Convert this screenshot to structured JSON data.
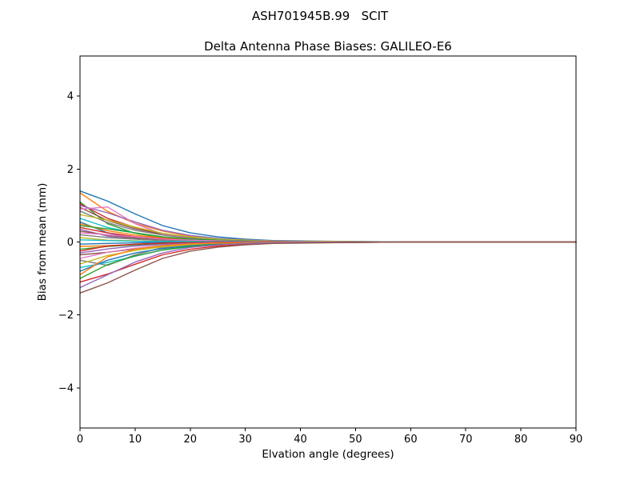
{
  "figure": {
    "suptitle": "ASH701945B.99   SCIT",
    "background": "#ffffff"
  },
  "chart_data": {
    "type": "line",
    "title": "Delta Antenna Phase Biases: GALILEO-E6",
    "suptitle": "ASH701945B.99   SCIT",
    "xlabel": "Elvation angle (degrees)",
    "ylabel": "Bias from mean (mm)",
    "xlim": [
      0,
      90
    ],
    "ylim": [
      -5.1,
      5.1
    ],
    "xticks": [
      0,
      10,
      20,
      30,
      40,
      50,
      60,
      70,
      80,
      90
    ],
    "xtick_labels": [
      "0",
      "10",
      "20",
      "30",
      "40",
      "50",
      "60",
      "70",
      "80",
      "90"
    ],
    "yticks": [
      -4,
      -2,
      0,
      2,
      4
    ],
    "ytick_labels": [
      "−4",
      "−2",
      "0",
      "2",
      "4"
    ],
    "grid": false,
    "legend": "none",
    "axis_color": "#000000",
    "palette": [
      "#1f77b4",
      "#ff7f0e",
      "#2ca02c",
      "#d62728",
      "#9467bd",
      "#8c564b",
      "#e377c2",
      "#7f7f7f",
      "#bcbd22",
      "#17becf"
    ],
    "x": [
      0,
      5,
      10,
      15,
      20,
      25,
      30,
      35,
      40,
      50,
      60,
      70,
      80,
      90
    ],
    "series": [
      {
        "values": [
          1.4,
          1.12,
          0.77,
          0.45,
          0.25,
          0.14,
          0.08,
          0.04,
          0.03,
          0.01,
          0,
          0,
          0,
          0
        ]
      },
      {
        "values": [
          1.35,
          0.84,
          0.51,
          0.3,
          0.16,
          0.09,
          0.05,
          0.03,
          0.01,
          0,
          0,
          0,
          0,
          0
        ]
      },
      {
        "values": [
          1.1,
          0.5,
          0.24,
          0.12,
          0.07,
          0.03,
          0.02,
          0.01,
          0,
          0,
          0,
          0,
          0,
          0
        ]
      },
      {
        "values": [
          1.05,
          0.65,
          0.4,
          0.23,
          0.13,
          0.07,
          0.04,
          0.02,
          0.01,
          0,
          0,
          0,
          0,
          0
        ]
      },
      {
        "values": [
          1.0,
          0.8,
          0.55,
          0.32,
          0.18,
          0.1,
          0.06,
          0.03,
          0.02,
          0.01,
          0,
          0,
          0,
          0
        ]
      },
      {
        "values": [
          0.95,
          0.59,
          0.36,
          0.21,
          0.11,
          0.07,
          0.04,
          0.02,
          0.01,
          0,
          0,
          0,
          0,
          0
        ]
      },
      {
        "values": [
          0.9,
          0.96,
          0.5,
          0.22,
          0.1,
          0.05,
          0.02,
          0.01,
          0,
          0,
          0,
          0,
          0,
          0
        ]
      },
      {
        "values": [
          0.85,
          0.53,
          0.32,
          0.19,
          0.1,
          0.06,
          0.03,
          0.02,
          0.01,
          0,
          0,
          0,
          0,
          0
        ]
      },
      {
        "values": [
          0.75,
          0.6,
          0.41,
          0.24,
          0.14,
          0.08,
          0.05,
          0.02,
          0.02,
          0.01,
          0,
          0,
          0,
          0
        ]
      },
      {
        "values": [
          0.65,
          0.4,
          0.25,
          0.14,
          0.08,
          0.05,
          0.03,
          0.01,
          0.01,
          0,
          0,
          0,
          0,
          0
        ]
      },
      {
        "values": [
          0.55,
          0.25,
          0.12,
          0.06,
          0.03,
          0.02,
          0.01,
          0.01,
          0,
          0,
          0,
          0,
          0,
          0
        ]
      },
      {
        "values": [
          0.5,
          0.31,
          0.19,
          0.11,
          0.06,
          0.04,
          0.02,
          0.01,
          0,
          0,
          0,
          0,
          0,
          0
        ]
      },
      {
        "values": [
          0.45,
          0.36,
          0.25,
          0.14,
          0.08,
          0.05,
          0.03,
          0.01,
          0.01,
          0,
          0,
          0,
          0,
          0
        ]
      },
      {
        "values": [
          0.4,
          0.25,
          0.15,
          0.09,
          0.05,
          0.03,
          0.02,
          0.01,
          0,
          0,
          0,
          0,
          0,
          0
        ]
      },
      {
        "values": [
          0.35,
          0.16,
          0.08,
          0.04,
          0.02,
          0.01,
          0.01,
          0,
          0,
          0,
          0,
          0,
          0,
          0
        ]
      },
      {
        "values": [
          0.3,
          0.19,
          0.11,
          0.07,
          0.04,
          0.02,
          0.01,
          0.01,
          0,
          0,
          0,
          0,
          0,
          0
        ]
      },
      {
        "values": [
          0.25,
          0.2,
          0.14,
          0.08,
          0.05,
          0.03,
          0.02,
          0.01,
          0.01,
          0,
          0,
          0,
          0,
          0
        ]
      },
      {
        "values": [
          0.2,
          0.12,
          0.08,
          0.04,
          0.02,
          0.01,
          0.01,
          0,
          0,
          0,
          0,
          0,
          0,
          0
        ]
      },
      {
        "values": [
          0.12,
          0.05,
          0.03,
          0.01,
          0.01,
          0,
          0,
          0,
          0,
          0,
          0,
          0,
          0,
          0
        ]
      },
      {
        "values": [
          0.06,
          0.04,
          0.02,
          0.01,
          0.01,
          0,
          0,
          0,
          0,
          0,
          0,
          0,
          0,
          0
        ]
      },
      {
        "values": [
          -0.06,
          -0.04,
          -0.02,
          -0.01,
          -0.01,
          0,
          0,
          0,
          0,
          0,
          0,
          0,
          0,
          0
        ]
      },
      {
        "values": [
          -0.12,
          -0.1,
          -0.07,
          -0.04,
          -0.02,
          -0.01,
          -0.01,
          0,
          0,
          0,
          0,
          0,
          0,
          0
        ]
      },
      {
        "values": [
          -0.2,
          -0.12,
          -0.08,
          -0.04,
          -0.02,
          -0.01,
          -0.01,
          0,
          0,
          0,
          0,
          0,
          0,
          0
        ]
      },
      {
        "values": [
          -0.25,
          -0.11,
          -0.06,
          -0.03,
          -0.02,
          -0.01,
          0,
          0,
          0,
          0,
          0,
          0,
          0,
          0
        ]
      },
      {
        "values": [
          -0.3,
          -0.19,
          -0.11,
          -0.07,
          -0.04,
          -0.02,
          -0.01,
          -0.01,
          0,
          0,
          0,
          0,
          0,
          0
        ]
      },
      {
        "values": [
          -0.35,
          -0.28,
          -0.19,
          -0.11,
          -0.06,
          -0.04,
          -0.02,
          -0.01,
          -0.01,
          0,
          0,
          0,
          0,
          0
        ]
      },
      {
        "values": [
          -0.45,
          -0.28,
          -0.17,
          -0.1,
          -0.05,
          -0.03,
          -0.02,
          -0.01,
          0,
          0,
          0,
          0,
          0,
          0
        ]
      },
      {
        "values": [
          -0.5,
          -0.64,
          -0.35,
          -0.15,
          -0.07,
          -0.03,
          -0.01,
          0,
          0,
          0,
          0,
          0,
          0,
          0
        ]
      },
      {
        "values": [
          -0.6,
          -0.37,
          -0.23,
          -0.13,
          -0.07,
          -0.04,
          -0.02,
          -0.01,
          -0.01,
          0,
          0,
          0,
          0,
          0
        ]
      },
      {
        "values": [
          -0.7,
          -0.56,
          -0.39,
          -0.22,
          -0.13,
          -0.07,
          -0.04,
          -0.02,
          -0.01,
          -0.01,
          0,
          0,
          0,
          0
        ]
      },
      {
        "values": [
          -0.8,
          -0.5,
          -0.3,
          -0.18,
          -0.1,
          -0.06,
          -0.03,
          -0.02,
          -0.01,
          0,
          0,
          0,
          0,
          0
        ]
      },
      {
        "values": [
          -0.9,
          -0.41,
          -0.2,
          -0.1,
          -0.05,
          -0.03,
          -0.02,
          -0.01,
          0,
          0,
          0,
          0,
          0,
          0
        ]
      },
      {
        "values": [
          -1.0,
          -0.62,
          -0.38,
          -0.22,
          -0.12,
          -0.07,
          -0.04,
          -0.02,
          -0.01,
          0,
          0,
          0,
          0,
          0
        ]
      },
      {
        "values": [
          -1.1,
          -0.88,
          -0.61,
          -0.35,
          -0.2,
          -0.11,
          -0.07,
          -0.03,
          -0.02,
          -0.01,
          0,
          0,
          0,
          0
        ]
      },
      {
        "values": [
          -1.25,
          -0.9,
          -0.55,
          -0.3,
          -0.15,
          -0.08,
          -0.04,
          -0.02,
          -0.01,
          0,
          0,
          0,
          0,
          0
        ]
      },
      {
        "values": [
          -1.4,
          -1.12,
          -0.77,
          -0.45,
          -0.25,
          -0.14,
          -0.08,
          -0.04,
          -0.03,
          -0.01,
          0,
          0,
          0,
          0
        ]
      }
    ]
  }
}
